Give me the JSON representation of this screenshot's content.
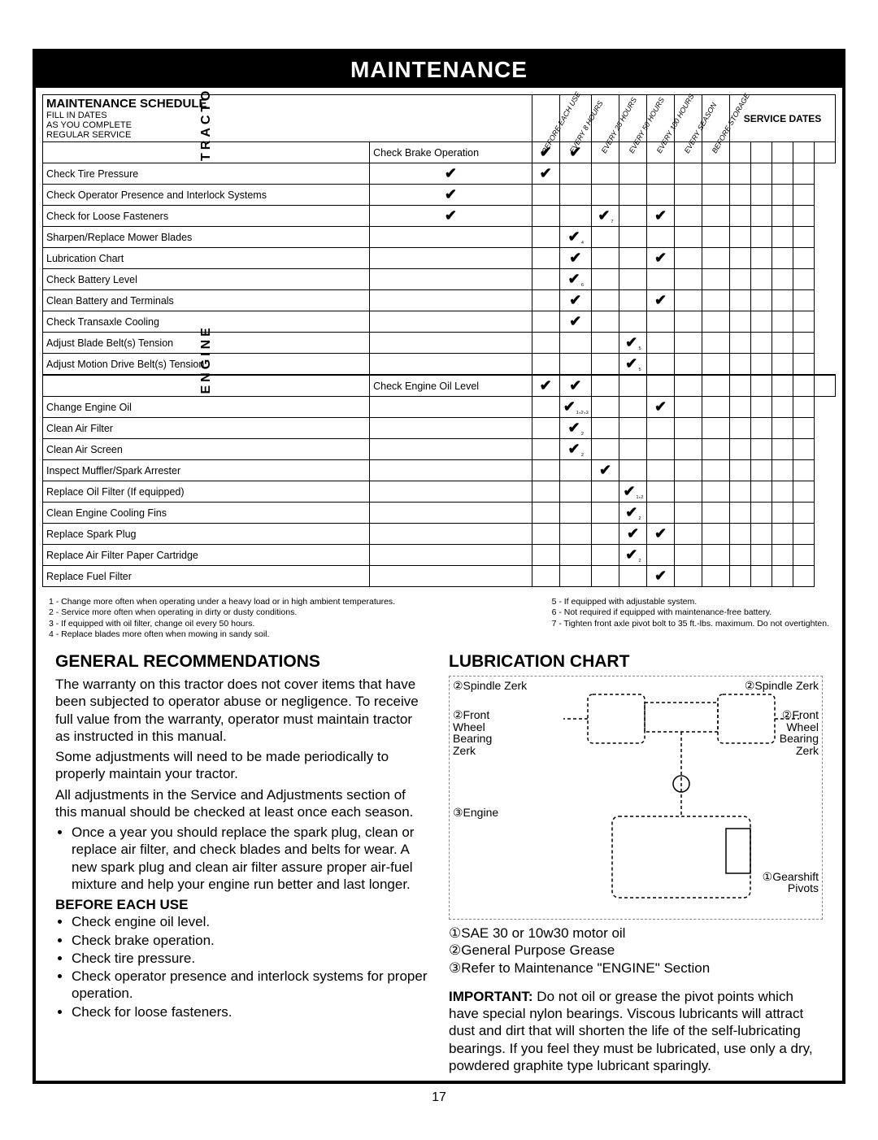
{
  "page": {
    "title": "MAINTENANCE",
    "number": "17"
  },
  "schedule": {
    "heading": "MAINTENANCE SCHEDULE",
    "subheading": "FILL IN DATES\nAS YOU COMPLETE\nREGULAR SERVICE",
    "columns": [
      "BEFORE EACH USE",
      "EVERY 8 HOURS",
      "EVERY 25 HOURS",
      "EVERY 50 HOURS",
      "EVERY 100 HOURS",
      "EVERY SEASON",
      "BEFORE STORAGE"
    ],
    "service_dates_label": "SERVICE DATES",
    "service_date_cols": 5,
    "side_label_1": "TRACTOR",
    "side_label_2": "ENGINE",
    "group1": [
      {
        "task": "Check Brake Operation",
        "marks": [
          "✔",
          "✔",
          "",
          "",
          "",
          "",
          ""
        ]
      },
      {
        "task": "Check Tire Pressure",
        "marks": [
          "✔",
          "✔",
          "",
          "",
          "",
          "",
          ""
        ]
      },
      {
        "task": "Check Operator Presence and Interlock Systems",
        "marks": [
          "✔",
          "",
          "",
          "",
          "",
          "",
          ""
        ]
      },
      {
        "task": "Check for Loose Fasteners",
        "marks": [
          "✔",
          "",
          "",
          "✔₇",
          "",
          "✔",
          ""
        ]
      },
      {
        "task": "Sharpen/Replace Mower Blades",
        "marks": [
          "",
          "",
          "✔₄",
          "",
          "",
          "",
          ""
        ]
      },
      {
        "task": "Lubrication Chart",
        "marks": [
          "",
          "",
          "✔",
          "",
          "",
          "✔",
          ""
        ]
      },
      {
        "task": "Check Battery Level",
        "marks": [
          "",
          "",
          "✔₆",
          "",
          "",
          "",
          ""
        ]
      },
      {
        "task": "Clean Battery and Terminals",
        "marks": [
          "",
          "",
          "✔",
          "",
          "",
          "✔",
          ""
        ]
      },
      {
        "task": "Check Transaxle Cooling",
        "marks": [
          "",
          "",
          "✔",
          "",
          "",
          "",
          ""
        ]
      },
      {
        "task": "Adjust Blade Belt(s) Tension",
        "marks": [
          "",
          "",
          "",
          "",
          "✔₅",
          "",
          ""
        ]
      },
      {
        "task": "Adjust Motion Drive Belt(s) Tension",
        "marks": [
          "",
          "",
          "",
          "",
          "✔₅",
          "",
          ""
        ]
      }
    ],
    "group2": [
      {
        "task": "Check Engine Oil Level",
        "marks": [
          "✔",
          "✔",
          "",
          "",
          "",
          "",
          ""
        ]
      },
      {
        "task": "Change Engine Oil",
        "marks": [
          "",
          "",
          "✔₁,₂,₃",
          "",
          "",
          "✔",
          ""
        ]
      },
      {
        "task": "Clean Air Filter",
        "marks": [
          "",
          "",
          "✔₂",
          "",
          "",
          "",
          ""
        ]
      },
      {
        "task": "Clean Air Screen",
        "marks": [
          "",
          "",
          "✔₂",
          "",
          "",
          "",
          ""
        ]
      },
      {
        "task": "Inspect Muffler/Spark Arrester",
        "marks": [
          "",
          "",
          "",
          "✔",
          "",
          "",
          ""
        ]
      },
      {
        "task": "Replace Oil Filter (If equipped)",
        "marks": [
          "",
          "",
          "",
          "",
          "✔₁,₂",
          "",
          ""
        ]
      },
      {
        "task": "Clean Engine Cooling Fins",
        "marks": [
          "",
          "",
          "",
          "",
          "✔₂",
          "",
          ""
        ]
      },
      {
        "task": "Replace Spark Plug",
        "marks": [
          "",
          "",
          "",
          "",
          "✔",
          "✔",
          ""
        ]
      },
      {
        "task": "Replace Air Filter Paper Cartridge",
        "marks": [
          "",
          "",
          "",
          "",
          "✔₂",
          "",
          ""
        ]
      },
      {
        "task": "Replace Fuel Filter",
        "marks": [
          "",
          "",
          "",
          "",
          "",
          "✔",
          ""
        ]
      }
    ]
  },
  "footnotes": {
    "left": [
      "1 - Change more often when operating under a heavy load or in high ambient temperatures.",
      "2 - Service more often when operating in dirty or dusty conditions.",
      "3 - If equipped with oil filter, change oil every 50 hours.",
      "4 - Replace blades more often when mowing in sandy soil."
    ],
    "right": [
      "5 - If equipped with adjustable system.",
      "6 - Not required if equipped with maintenance-free battery.",
      "7 - Tighten front axle pivot bolt to 35 ft.-lbs. maximum. Do not overtighten."
    ]
  },
  "general": {
    "heading": "GENERAL RECOMMENDATIONS",
    "p1": "The warranty on this tractor does not cover items that have been subjected to operator abuse or negligence. To receive full value from the warranty, operator must maintain tractor as instructed in this manual.",
    "p2": "Some adjustments will need to be made periodically to properly maintain your tractor.",
    "p3": "All adjustments in the Service and Adjustments section of this manual should be checked at least once each season.",
    "bullet1": "Once a year you should replace the spark plug, clean or replace air filter, and check blades and belts for wear. A new spark plug and clean air filter assure proper air-fuel mixture and help your engine run better and last longer.",
    "sub_heading": "BEFORE EACH USE",
    "before_list": [
      "Check engine oil level.",
      "Check brake operation.",
      "Check tire pressure.",
      "Check operator presence and interlock systems for proper operation.",
      "Check for loose fasteners."
    ]
  },
  "lubrication": {
    "heading": "LUBRICATION CHART",
    "labels": {
      "spindle_l": "②Spindle Zerk",
      "spindle_r": "②Spindle Zerk",
      "front_l": "②Front Wheel Bearing Zerk",
      "front_r": "②Front Wheel Bearing Zerk",
      "engine": "③Engine",
      "gearshift": "①Gearshift Pivots"
    },
    "legend": [
      "①SAE 30 or 10w30 motor oil",
      "②General Purpose Grease",
      "③Refer to Maintenance \"ENGINE\" Section"
    ],
    "important_label": "IMPORTANT:",
    "important": "Do not oil or grease the pivot points which have special nylon bearings. Viscous lubricants will attract dust and dirt that will shorten the life of the self-lubricating bearings. If you feel they must be lubricated, use only a dry, powdered graphite type lubricant sparingly."
  }
}
